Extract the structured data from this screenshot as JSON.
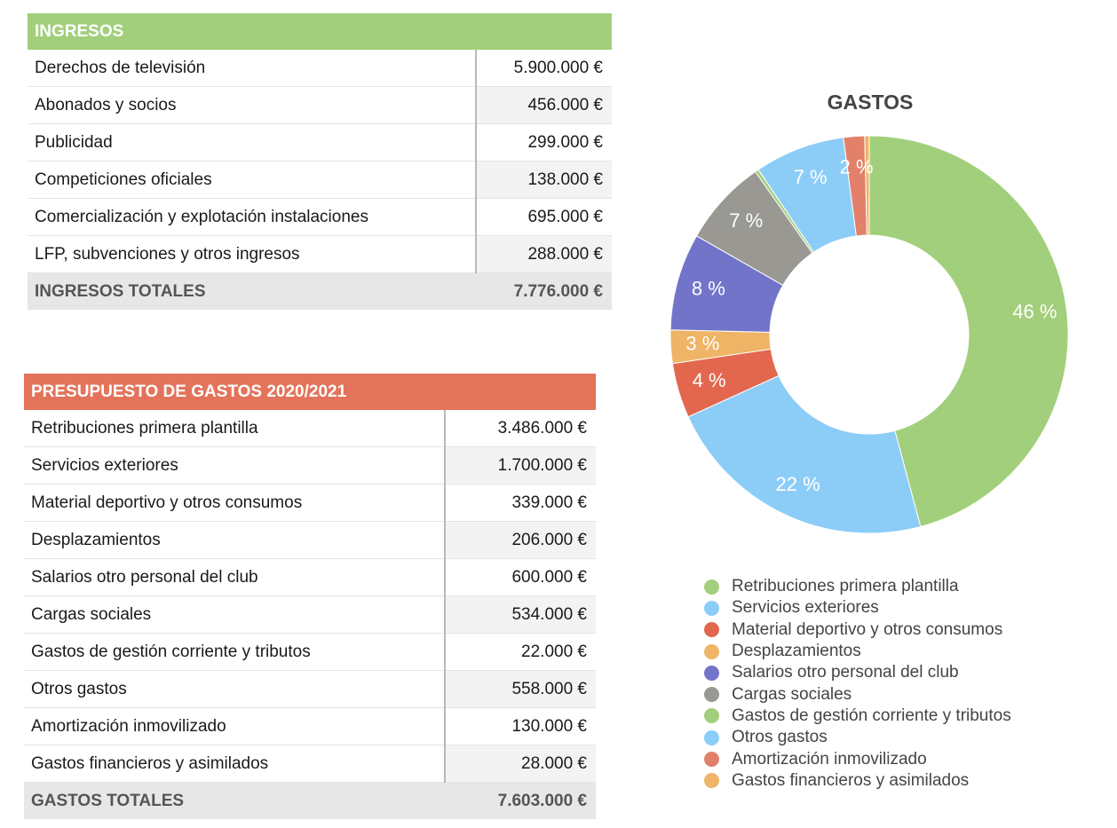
{
  "ingresos": {
    "title": "INGRESOS",
    "rows": [
      {
        "label": "Derechos de televisión",
        "value": "5.900.000 €"
      },
      {
        "label": "Abonados y socios",
        "value": "456.000 €"
      },
      {
        "label": "Publicidad",
        "value": "299.000 €"
      },
      {
        "label": "Competiciones oficiales",
        "value": "138.000 €"
      },
      {
        "label": "Comercialización y explotación  instalaciones",
        "value": "695.000 €"
      },
      {
        "label": "LFP, subvenciones y otros ingresos",
        "value": "288.000 €"
      }
    ],
    "total_label": "INGRESOS TOTALES",
    "total_value": "7.776.000 €",
    "header_color": "#a2cf7b"
  },
  "gastos": {
    "title": "PRESUPUESTO DE GASTOS 2020/2021",
    "rows": [
      {
        "label": "Retribuciones primera plantilla",
        "value": "3.486.000 €"
      },
      {
        "label": "Servicios exteriores",
        "value": "1.700.000 €"
      },
      {
        "label": "Material deportivo y otros consumos",
        "value": "339.000 €"
      },
      {
        "label": "Desplazamientos",
        "value": "206.000 €"
      },
      {
        "label": "Salarios otro personal del club",
        "value": "600.000 €"
      },
      {
        "label": "Cargas sociales",
        "value": "534.000 €"
      },
      {
        "label": "Gastos de gestión corriente y tributos",
        "value": "22.000 €"
      },
      {
        "label": "Otros gastos",
        "value": "558.000 €"
      },
      {
        "label": "Amortización inmovilizado",
        "value": "130.000 €"
      },
      {
        "label": "Gastos financieros y asimilados",
        "value": "28.000 €"
      }
    ],
    "total_label": "GASTOS TOTALES",
    "total_value": "7.603.000 €",
    "header_color": "#e3735a"
  },
  "chart_data": {
    "type": "pie",
    "title": "GASTOS",
    "legend_position": "bottom",
    "categories": [
      "Retribuciones primera plantilla",
      "Servicios exteriores",
      "Material deportivo y otros consumos",
      "Desplazamientos",
      "Salarios otro personal del club",
      "Cargas sociales",
      "Gastos de gestión corriente y tributos",
      "Otros gastos",
      "Amortización inmovilizado",
      "Gastos financieros y asimilados"
    ],
    "values": [
      3486000,
      1700000,
      339000,
      206000,
      600000,
      534000,
      22000,
      558000,
      130000,
      28000
    ],
    "labels": [
      "46 %",
      "22 %",
      "4 %",
      "3 %",
      "8 %",
      "7 %",
      "",
      "7 %",
      "2 %",
      ""
    ],
    "colors": [
      "#a2cf7b",
      "#8ccdf8",
      "#e2674e",
      "#efb466",
      "#7274c9",
      "#999893",
      "#a2cf7b",
      "#8ccdf8",
      "#e2806a",
      "#efb466"
    ]
  }
}
